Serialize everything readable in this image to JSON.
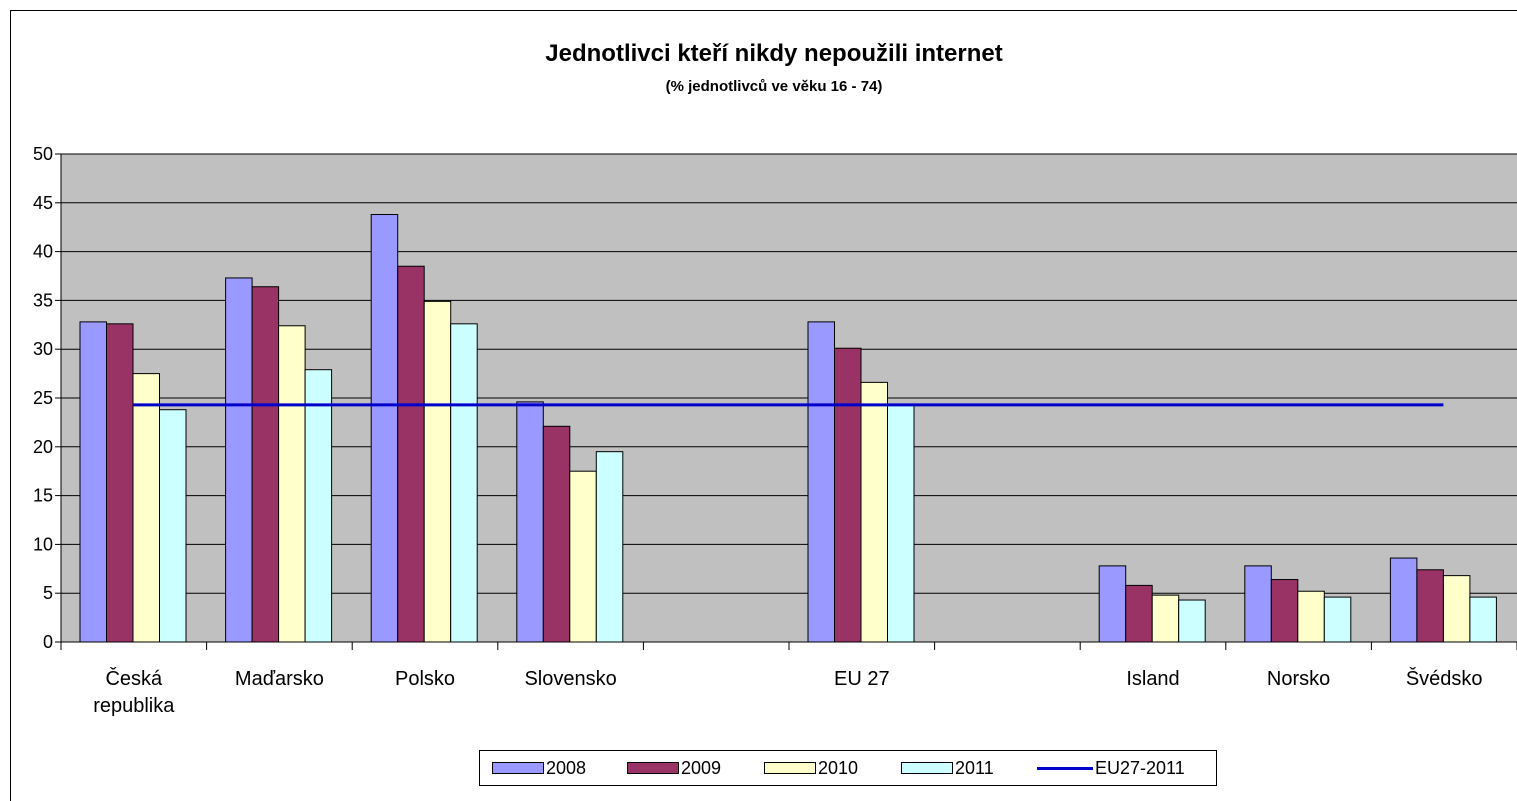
{
  "chart_data": {
    "type": "bar",
    "title": "Jednotlivci kteří nikdy nepoužili internet",
    "subtitle": "(% jednotlivců ve věku 16 - 74)",
    "categories": [
      "Česká republika",
      "Maďarsko",
      "Polsko",
      "Slovensko",
      "",
      "EU 27",
      "",
      "Island",
      "Norsko",
      "Švédsko"
    ],
    "category_lines": [
      [
        "Česká",
        "republika"
      ],
      [
        "Maďarsko"
      ],
      [
        "Polsko"
      ],
      [
        "Slovensko"
      ],
      [],
      [
        "EU 27"
      ],
      [],
      [
        "Island"
      ],
      [
        "Norsko"
      ],
      [
        "Švédsko"
      ]
    ],
    "series": [
      {
        "name": "2008",
        "color": "#9999FF",
        "values": [
          32.8,
          37.3,
          43.8,
          24.6,
          null,
          32.8,
          null,
          7.8,
          7.8,
          8.6
        ]
      },
      {
        "name": "2009",
        "color": "#993366",
        "values": [
          32.6,
          36.4,
          38.5,
          22.1,
          null,
          30.1,
          null,
          5.8,
          6.4,
          7.4
        ]
      },
      {
        "name": "2010",
        "color": "#FFFFCC",
        "values": [
          27.5,
          32.4,
          34.9,
          17.5,
          null,
          26.6,
          null,
          4.8,
          5.2,
          6.8
        ]
      },
      {
        "name": "2011",
        "color": "#CCFFFF",
        "values": [
          23.8,
          27.9,
          32.6,
          19.5,
          null,
          24.3,
          null,
          4.3,
          4.6,
          4.6
        ]
      }
    ],
    "reference_line": {
      "name": "EU27-2011",
      "color": "#0000CC",
      "value": 24.3
    },
    "ylim": [
      0,
      50
    ],
    "yticks": [
      0,
      5,
      10,
      15,
      20,
      25,
      30,
      35,
      40,
      45,
      50
    ],
    "grid": true,
    "plot_background": "#C0C0C0",
    "legend_position": "bottom"
  }
}
